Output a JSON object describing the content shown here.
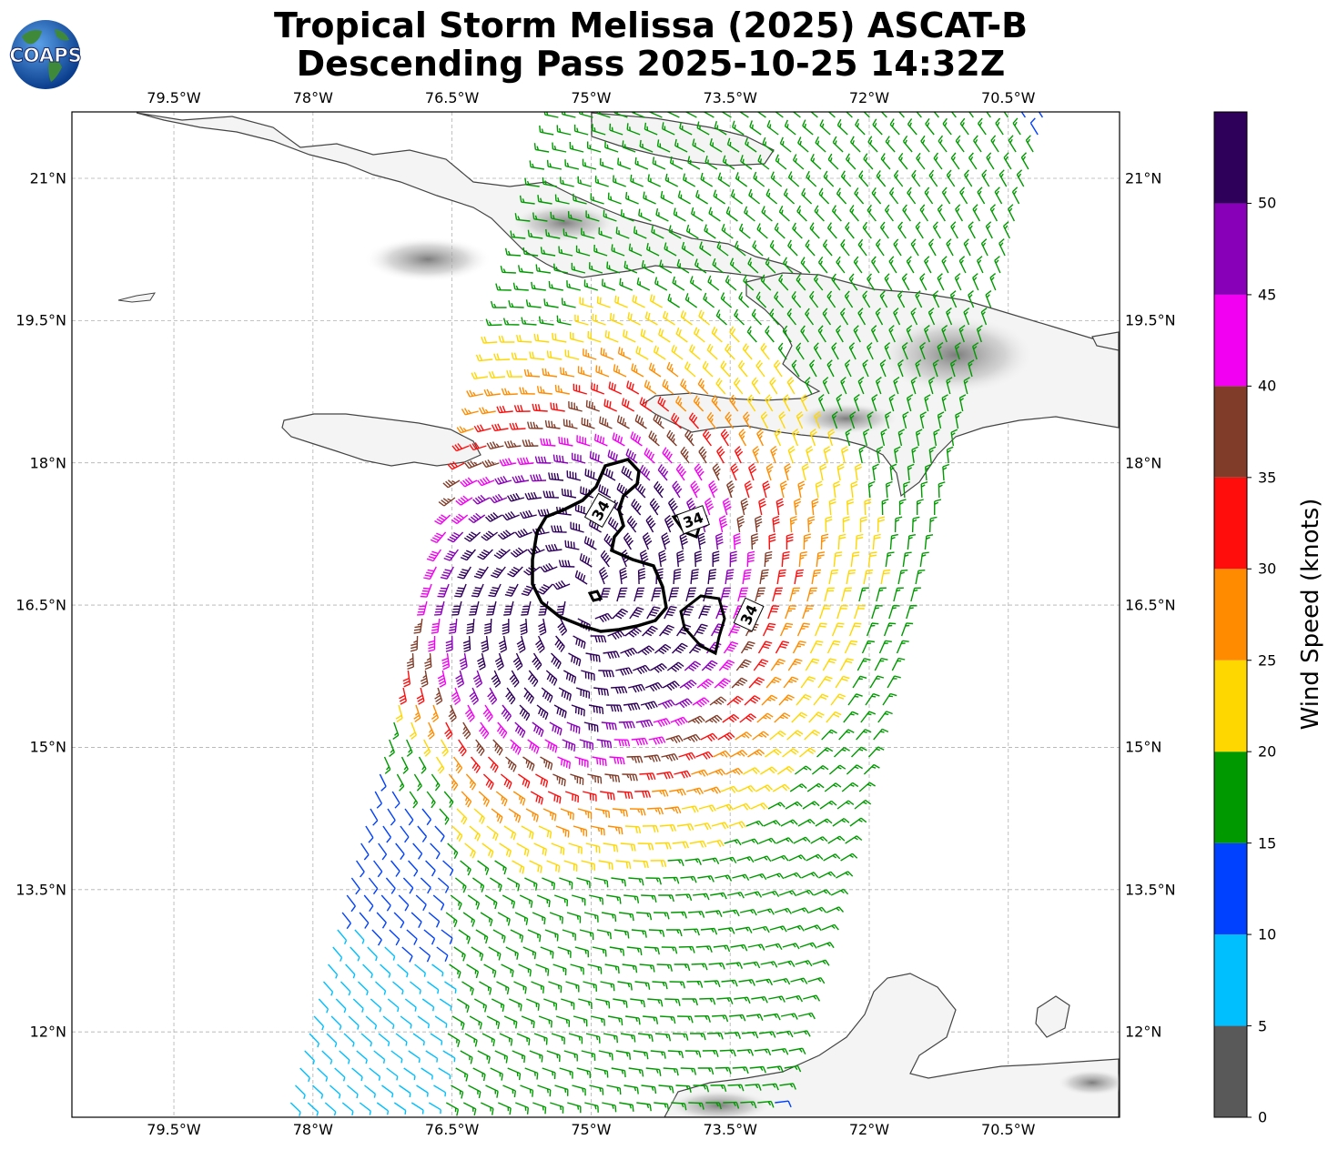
{
  "header": {
    "title_line1": "Tropical Storm Melissa (2025) ASCAT-B",
    "title_line2": "Descending Pass 2025-10-25 14:32Z",
    "logo_text": "COAPS"
  },
  "map": {
    "lon_range": [
      -80.6,
      -69.3
    ],
    "lat_range": [
      11.1,
      21.7
    ],
    "lon_ticks": [
      {
        "value": -79.5,
        "label": "79.5°W"
      },
      {
        "value": -78.0,
        "label": "78°W"
      },
      {
        "value": -76.5,
        "label": "76.5°W"
      },
      {
        "value": -75.0,
        "label": "75°W"
      },
      {
        "value": -73.5,
        "label": "73.5°W"
      },
      {
        "value": -72.0,
        "label": "72°W"
      },
      {
        "value": -70.5,
        "label": "70.5°W"
      }
    ],
    "lat_ticks": [
      {
        "value": 21.0,
        "label": "21°N"
      },
      {
        "value": 19.5,
        "label": "19.5°N"
      },
      {
        "value": 18.0,
        "label": "18°N"
      },
      {
        "value": 16.5,
        "label": "16.5°N"
      },
      {
        "value": 15.0,
        "label": "15°N"
      },
      {
        "value": 13.5,
        "label": "13.5°N"
      },
      {
        "value": 12.0,
        "label": "12°N"
      }
    ],
    "grid": true,
    "storm_center": {
      "lon": -75.1,
      "lat": 16.55
    },
    "contour_label": "34",
    "contour_labels": [
      {
        "lon": -74.9,
        "lat": 17.5,
        "angle": -60
      },
      {
        "lon": -73.9,
        "lat": 17.4,
        "angle": -20
      },
      {
        "lon": -73.3,
        "lat": 16.4,
        "angle": -65
      }
    ]
  },
  "colorbar": {
    "label": "Wind Speed (knots)",
    "bins": [
      {
        "min": 0,
        "max": 5,
        "color": "#595959"
      },
      {
        "min": 5,
        "max": 10,
        "color": "#00bfff"
      },
      {
        "min": 10,
        "max": 15,
        "color": "#0040ff"
      },
      {
        "min": 15,
        "max": 20,
        "color": "#009900"
      },
      {
        "min": 20,
        "max": 25,
        "color": "#ffd700"
      },
      {
        "min": 25,
        "max": 30,
        "color": "#ff8c00"
      },
      {
        "min": 30,
        "max": 35,
        "color": "#ff0d0d"
      },
      {
        "min": 35,
        "max": 40,
        "color": "#803c28"
      },
      {
        "min": 40,
        "max": 45,
        "color": "#f200f2"
      },
      {
        "min": 45,
        "max": 50,
        "color": "#8800b8"
      },
      {
        "min": 50,
        "max": 55,
        "color": "#2e0059"
      }
    ],
    "ticks": [
      "0",
      "5",
      "10",
      "15",
      "20",
      "25",
      "30",
      "35",
      "40",
      "45",
      "50"
    ]
  }
}
